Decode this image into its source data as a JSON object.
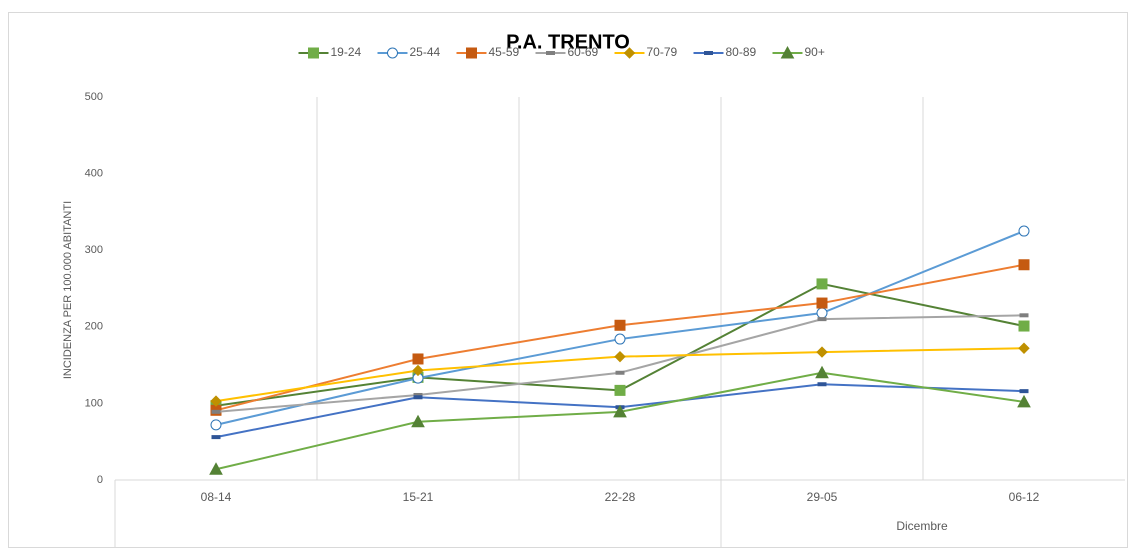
{
  "chart_data": {
    "type": "line",
    "title": "P.A. TRENTO",
    "ylabel": "INCIDENZA PER 100.000 ABITANTI",
    "annotation": "Dicembre",
    "categories": [
      "08-14",
      "15-21",
      "22-28",
      "29-05",
      "06-12"
    ],
    "ylim": [
      0,
      500
    ],
    "yticks": [
      0,
      100,
      200,
      300,
      400,
      500
    ],
    "grid": "x",
    "legend": "top",
    "series": [
      {
        "name": "19-24",
        "color": "#548235",
        "marker_color": "#70ad47",
        "marker": "square",
        "values": [
          97,
          134,
          117,
          256,
          201
        ]
      },
      {
        "name": "25-44",
        "color": "#5b9bd5",
        "marker_color": "#2e75b6",
        "marker": "open-circle",
        "values": [
          72,
          133,
          184,
          218,
          325
        ]
      },
      {
        "name": "45-59",
        "color": "#ed7d31",
        "marker_color": "#c55a11",
        "marker": "square",
        "values": [
          91,
          158,
          202,
          231,
          281
        ]
      },
      {
        "name": "60-69",
        "color": "#a5a5a5",
        "marker_color": "#7f7f7f",
        "marker": "dash",
        "values": [
          89,
          111,
          140,
          210,
          215
        ]
      },
      {
        "name": "70-79",
        "color": "#ffc000",
        "marker_color": "#bf9000",
        "marker": "diamond",
        "values": [
          103,
          143,
          161,
          167,
          172
        ]
      },
      {
        "name": "80-89",
        "color": "#4472c4",
        "marker_color": "#2f5597",
        "marker": "dash",
        "values": [
          56,
          108,
          95,
          125,
          116
        ]
      },
      {
        "name": "90+",
        "color": "#70ad47",
        "marker_color": "#548235",
        "marker": "triangle",
        "values": [
          14,
          76,
          89,
          140,
          102
        ]
      }
    ]
  }
}
